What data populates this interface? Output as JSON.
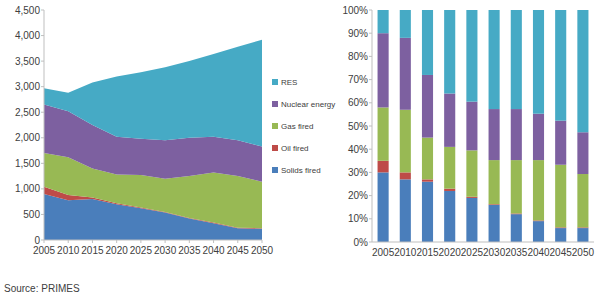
{
  "chart_data": [
    {
      "type": "area",
      "stacked": true,
      "legend": "right",
      "grid": false,
      "x": [
        2005,
        2010,
        2015,
        2020,
        2025,
        2030,
        2035,
        2040,
        2045,
        2050
      ],
      "xlim": [
        2005,
        2050
      ],
      "xticks": [
        2005,
        2010,
        2015,
        2020,
        2025,
        2030,
        2035,
        2040,
        2045,
        2050
      ],
      "ylim": [
        0,
        4500
      ],
      "yticks": [
        0,
        500,
        {
          "value": 1000,
          "label": "1,000"
        },
        {
          "value": 1500,
          "label": "1,500"
        },
        {
          "value": 2000,
          "label": "2,000"
        },
        {
          "value": 2500,
          "label": "2,500"
        },
        {
          "value": 3000,
          "label": "3,000"
        },
        {
          "value": 3500,
          "label": "3,500"
        },
        {
          "value": 4000,
          "label": "4,000"
        },
        {
          "value": 4500,
          "label": "4,500"
        }
      ],
      "series": [
        {
          "name": "Solids fired",
          "color": "#4a7ebb",
          "values": [
            900,
            780,
            800,
            700,
            620,
            540,
            420,
            330,
            230,
            220
          ]
        },
        {
          "name": "Oil fired",
          "color": "#be4b48",
          "values": [
            140,
            100,
            30,
            20,
            15,
            10,
            10,
            10,
            10,
            10
          ]
        },
        {
          "name": "Gas fired",
          "color": "#98b954",
          "values": [
            660,
            740,
            570,
            560,
            635,
            650,
            820,
            980,
            1010,
            910
          ]
        },
        {
          "name": "Nuclear energy",
          "color": "#7d60a0",
          "values": [
            950,
            900,
            850,
            740,
            710,
            750,
            750,
            700,
            700,
            690
          ]
        },
        {
          "name": "RES",
          "color": "#46aac5",
          "values": [
            320,
            360,
            830,
            1180,
            1300,
            1430,
            1500,
            1620,
            1830,
            2090
          ]
        }
      ]
    },
    {
      "type": "bar",
      "stacked": true,
      "grid": false,
      "categories": [
        "2005",
        "2010",
        "2015",
        "2020",
        "2025",
        "2030",
        "2035",
        "2040",
        "2045",
        "2050"
      ],
      "ylim": [
        0,
        100
      ],
      "yticks": [
        {
          "value": 0,
          "label": "0%"
        },
        {
          "value": 10,
          "label": "10%"
        },
        {
          "value": 20,
          "label": "20%"
        },
        {
          "value": 30,
          "label": "30%"
        },
        {
          "value": 40,
          "label": "40%"
        },
        {
          "value": 50,
          "label": "50%"
        },
        {
          "value": 60,
          "label": "60%"
        },
        {
          "value": 70,
          "label": "70%"
        },
        {
          "value": 80,
          "label": "80%"
        },
        {
          "value": 90,
          "label": "90%"
        },
        {
          "value": 100,
          "label": "100%"
        }
      ],
      "series": [
        {
          "color": "#4a7ebb",
          "values": [
            30,
            27,
            26,
            22,
            19,
            16,
            12,
            9,
            6,
            6
          ]
        },
        {
          "color": "#be4b48",
          "values": [
            5,
            3,
            1,
            1,
            0.5,
            0.3,
            0.3,
            0.3,
            0.3,
            0.3
          ]
        },
        {
          "color": "#98b954",
          "values": [
            23,
            27,
            18,
            18,
            20,
            19,
            23,
            26,
            27,
            23
          ]
        },
        {
          "color": "#7d60a0",
          "values": [
            32,
            31,
            27,
            23,
            21,
            22,
            22,
            20,
            19,
            18
          ]
        },
        {
          "color": "#46aac5",
          "values": [
            10,
            12,
            28,
            36,
            39.5,
            42.7,
            42.7,
            44.7,
            47.7,
            52.7
          ]
        }
      ]
    }
  ],
  "source": "Source: PRIMES"
}
